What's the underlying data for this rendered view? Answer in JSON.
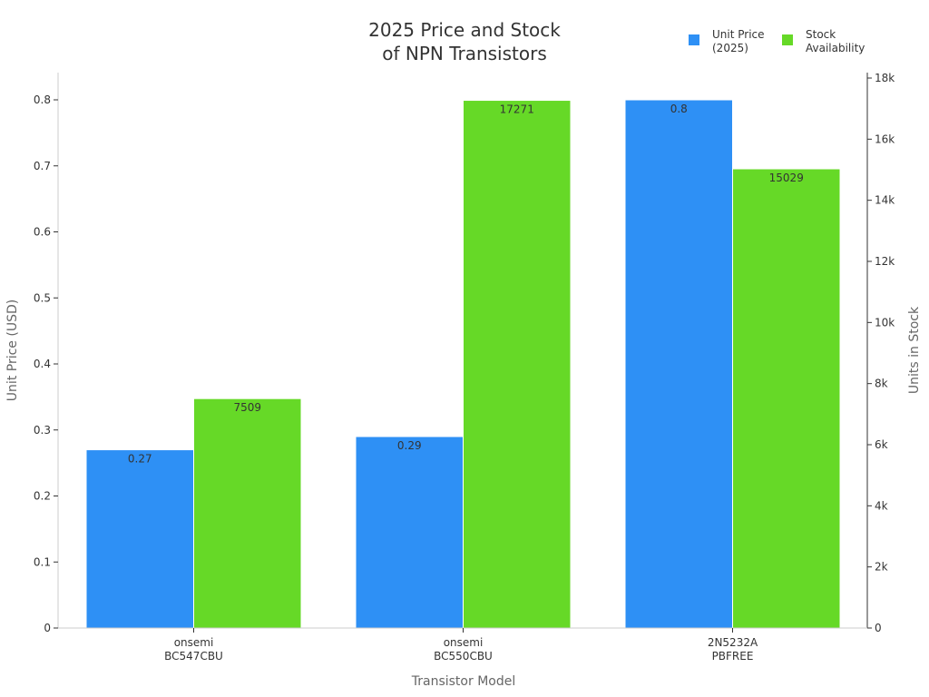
{
  "chart_data": {
    "type": "bar",
    "title": [
      "2025 Price and Stock",
      "of NPN Transistors"
    ],
    "xlabel": "Transistor Model",
    "ylabel_left": "Unit Price (USD)",
    "ylabel_right": "Units in Stock",
    "categories": [
      [
        "onsemi",
        "BC547CBU"
      ],
      [
        "onsemi",
        "BC550CBU"
      ],
      [
        "2N5232A",
        "PBFREE"
      ]
    ],
    "series": [
      {
        "name": [
          "Unit Price",
          "(2025)"
        ],
        "axis": "left",
        "color": "#2e90f5",
        "values": [
          0.27,
          0.29,
          0.8
        ],
        "labels": [
          "0.27",
          "0.29",
          "0.8"
        ]
      },
      {
        "name": [
          "Stock",
          "Availability"
        ],
        "axis": "right",
        "color": "#66d927",
        "values": [
          7509,
          17271,
          15029
        ],
        "labels": [
          "7509",
          "17271",
          "15029"
        ]
      }
    ],
    "ylim_left": [
      0,
      0.84
    ],
    "ylim_right": [
      0,
      18000
    ],
    "yticks_left": [
      0,
      0.1,
      0.2,
      0.3,
      0.4,
      0.5,
      0.6,
      0.7,
      0.8
    ],
    "yticks_left_labels": [
      "0",
      "0.1",
      "0.2",
      "0.3",
      "0.4",
      "0.5",
      "0.6",
      "0.7",
      "0.8"
    ],
    "yticks_right": [
      0,
      2000,
      4000,
      6000,
      8000,
      10000,
      12000,
      14000,
      16000,
      18000
    ],
    "yticks_right_labels": [
      "0",
      "2k",
      "4k",
      "6k",
      "8k",
      "10k",
      "12k",
      "14k",
      "16k",
      "18k"
    ],
    "grid": false,
    "legend_position": "top-right"
  }
}
